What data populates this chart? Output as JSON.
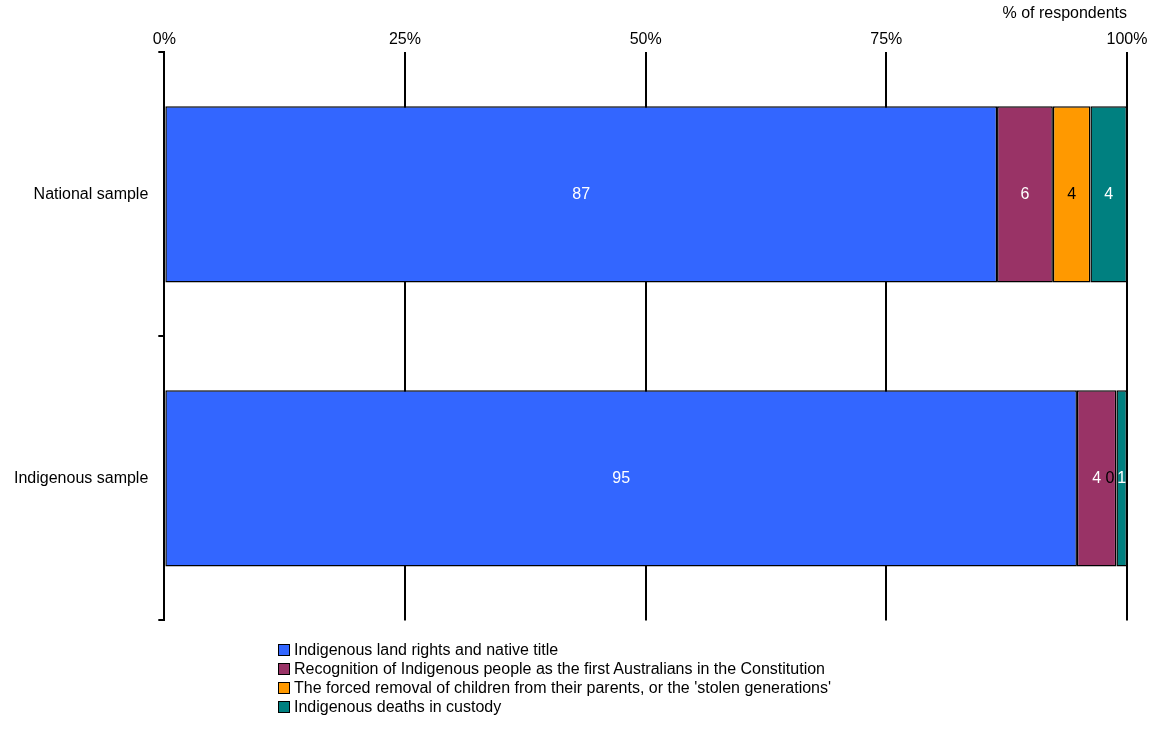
{
  "chart_data": {
    "type": "bar",
    "orientation": "horizontal",
    "stacked": true,
    "xlabel": "% of respondents",
    "categories": [
      "National sample",
      "Indigenous sample"
    ],
    "series": [
      {
        "name": "Indigenous land rights and native title",
        "color": "#3366ff",
        "values": [
          86.5,
          94.8
        ],
        "value_labels": [
          "87",
          "95"
        ]
      },
      {
        "name": "Recognition of Indigenous people as the first Australians in the Constitution",
        "color": "#993366",
        "values": [
          5.8,
          4.1
        ],
        "value_labels": [
          "6",
          "4"
        ]
      },
      {
        "name": "The forced removal of children from their parents, or the 'stolen generations'",
        "color": "#ff9900",
        "values": [
          3.9,
          0
        ],
        "value_labels": [
          "4",
          "0"
        ]
      },
      {
        "name": "Indigenous deaths in custody",
        "color": "#008080",
        "values": [
          3.8,
          1.1
        ],
        "value_labels": [
          "4",
          "1"
        ]
      }
    ],
    "xlim": [
      0,
      100
    ],
    "xticks": [
      {
        "value": 0,
        "label": "0%"
      },
      {
        "value": 25,
        "label": "25%"
      },
      {
        "value": 50,
        "label": "50%"
      },
      {
        "value": 75,
        "label": "75%"
      },
      {
        "value": 100,
        "label": "100%"
      }
    ],
    "grid": "x",
    "legend": "bottom"
  }
}
